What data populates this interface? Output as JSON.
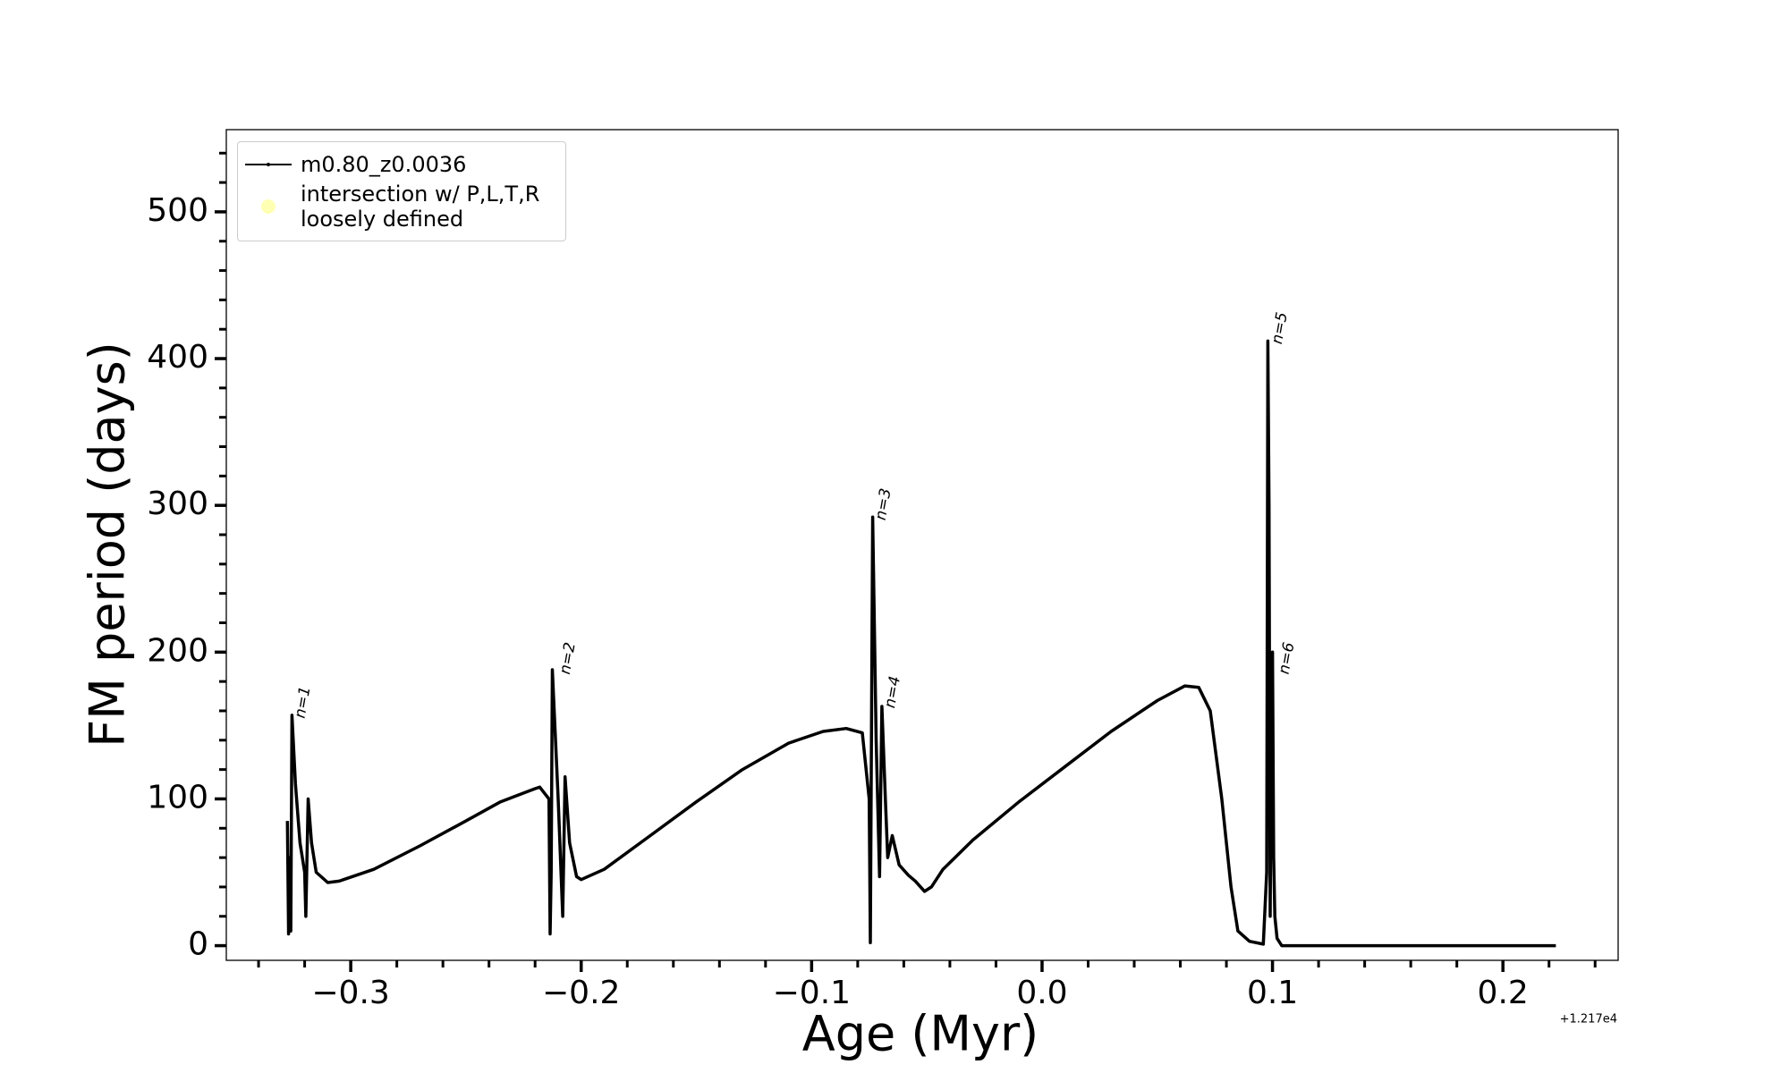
{
  "chart_data": {
    "type": "line",
    "xlabel": "Age (Myr)",
    "ylabel": "FM period (days)",
    "offset_text": "+1.217e4",
    "xlim": [
      -0.354,
      0.25
    ],
    "ylim": [
      -10,
      556
    ],
    "xticks": [
      {
        "value": -0.3,
        "label": "−0.3"
      },
      {
        "value": -0.2,
        "label": "−0.2"
      },
      {
        "value": -0.1,
        "label": "−0.1"
      },
      {
        "value": 0.0,
        "label": "0.0"
      },
      {
        "value": 0.1,
        "label": "0.1"
      },
      {
        "value": 0.2,
        "label": "0.2"
      }
    ],
    "yticks": [
      0,
      100,
      200,
      300,
      400,
      500
    ],
    "xticks_minor": [
      -0.34,
      -0.32,
      -0.28,
      -0.26,
      -0.24,
      -0.22,
      -0.18,
      -0.16,
      -0.14,
      -0.12,
      -0.08,
      -0.06,
      -0.04,
      -0.02,
      0.02,
      0.04,
      0.06,
      0.08,
      0.12,
      0.14,
      0.16,
      0.18,
      0.22,
      0.24
    ],
    "yticks_minor": [
      20,
      40,
      60,
      80,
      120,
      140,
      160,
      180,
      220,
      240,
      260,
      280,
      320,
      340,
      360,
      380,
      420,
      440,
      460,
      480,
      520,
      540
    ],
    "legend": "upper left",
    "series": [
      {
        "name": "m0.80_z0.0036",
        "color": "#000000",
        "x": [
          -0.3275,
          -0.327,
          -0.3265,
          -0.326,
          -0.3255,
          -0.324,
          -0.322,
          -0.32,
          -0.3195,
          -0.3185,
          -0.317,
          -0.315,
          -0.31,
          -0.305,
          -0.29,
          -0.27,
          -0.25,
          -0.235,
          -0.22,
          -0.218,
          -0.214,
          -0.2135,
          -0.213,
          -0.2125,
          -0.21,
          -0.208,
          -0.207,
          -0.205,
          -0.202,
          -0.2,
          -0.19,
          -0.17,
          -0.15,
          -0.13,
          -0.11,
          -0.095,
          -0.085,
          -0.078,
          -0.075,
          -0.0745,
          -0.074,
          -0.0735,
          -0.072,
          -0.0705,
          -0.0695,
          -0.068,
          -0.067,
          -0.065,
          -0.062,
          -0.058,
          -0.055,
          -0.051,
          -0.048,
          -0.043,
          -0.03,
          -0.01,
          0.01,
          0.03,
          0.05,
          0.062,
          0.068,
          0.073,
          0.078,
          0.082,
          0.085,
          0.09,
          0.096,
          0.0975,
          0.098,
          0.0985,
          0.099,
          0.0995,
          0.1,
          0.1005,
          0.101,
          0.102,
          0.104,
          0.15,
          0.223
        ],
        "values": [
          85,
          8,
          60,
          10,
          157,
          110,
          70,
          50,
          20,
          100,
          70,
          50,
          43,
          44,
          52,
          68,
          85,
          98,
          107,
          108,
          100,
          8,
          50,
          188,
          100,
          20,
          115,
          70,
          47,
          45,
          52,
          75,
          98,
          120,
          138,
          146,
          148,
          145,
          100,
          2,
          150,
          292,
          140,
          47,
          163,
          100,
          60,
          75,
          55,
          48,
          44,
          37,
          40,
          52,
          72,
          98,
          122,
          146,
          167,
          177,
          176,
          160,
          100,
          40,
          10,
          3,
          1,
          50,
          412,
          300,
          20,
          150,
          200,
          60,
          20,
          5,
          0,
          0,
          0
        ]
      },
      {
        "name": "intersection w/ P,L,T,R\nloosely defined",
        "color": "#ffffb3",
        "type": "scatter",
        "x": [],
        "values": []
      }
    ],
    "annotations": [
      {
        "text": "n=1",
        "x": -0.322,
        "y": 155
      },
      {
        "text": "n=2",
        "x": -0.207,
        "y": 185
      },
      {
        "text": "n=3",
        "x": -0.07,
        "y": 290
      },
      {
        "text": "n=4",
        "x": -0.066,
        "y": 162
      },
      {
        "text": "n=5",
        "x": 0.102,
        "y": 410
      },
      {
        "text": "n=6",
        "x": 0.105,
        "y": 185
      }
    ]
  }
}
